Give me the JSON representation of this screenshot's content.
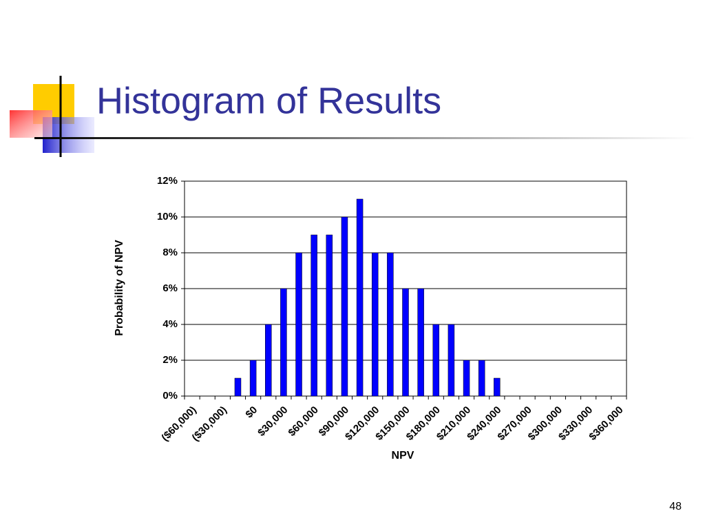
{
  "slide": {
    "title": "Histogram of Results",
    "page_number": "48"
  },
  "chart_data": {
    "type": "bar",
    "x_label": "NPV",
    "y_label": "Probability of NPV",
    "categories": [
      "($60,000)",
      null,
      "($30,000)",
      null,
      "$0",
      null,
      "$30,000",
      null,
      "$60,000",
      null,
      "$90,000",
      null,
      "$120,000",
      null,
      "$150,000",
      null,
      "$180,000",
      null,
      "$210,000",
      null,
      "$240,000",
      null,
      "$270,000",
      null,
      "$300,000",
      null,
      "$330,000",
      null,
      "$360,000"
    ],
    "values": [
      0,
      0,
      0,
      1,
      2,
      4,
      6,
      8,
      9,
      9,
      10,
      11,
      8,
      8,
      6,
      6,
      4,
      4,
      2,
      2,
      1,
      0,
      0,
      0,
      0,
      0,
      0,
      0,
      0
    ],
    "color": "#0000ff",
    "negative_label_color": "#ff0000",
    "label_color": "#000000",
    "ylim": [
      0,
      12
    ],
    "yticks": [
      {
        "value": 0,
        "label": "0%"
      },
      {
        "value": 2,
        "label": "2%"
      },
      {
        "value": 4,
        "label": "4%"
      },
      {
        "value": 6,
        "label": "6%"
      },
      {
        "value": 8,
        "label": "8%"
      },
      {
        "value": 10,
        "label": "10%"
      },
      {
        "value": 12,
        "label": "12%"
      }
    ],
    "grid": true
  }
}
